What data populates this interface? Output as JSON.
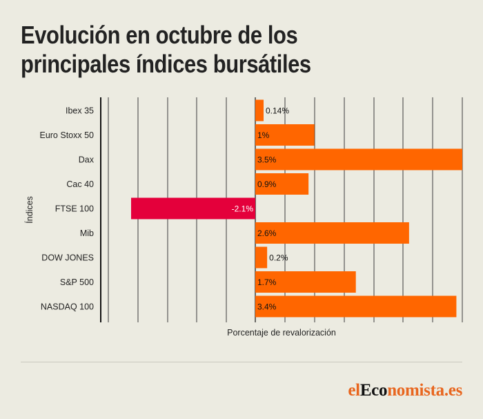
{
  "title": "Evolución en octubre de los principales índices bursátiles",
  "chart_data": {
    "type": "bar",
    "orientation": "horizontal",
    "categories": [
      "Ibex 35",
      "Euro Stoxx 50",
      "Dax",
      "Cac 40",
      "FTSE 100",
      "Mib",
      "DOW JONES",
      "S&P 500",
      "NASDAQ 100"
    ],
    "values": [
      0.14,
      1,
      3.5,
      0.9,
      -2.1,
      2.6,
      0.2,
      1.7,
      3.4
    ],
    "value_labels": [
      "0.14%",
      "1%",
      "3.5%",
      "0.9%",
      "-2.1%",
      "2.6%",
      "0.2%",
      "1.7%",
      "3.4%"
    ],
    "xlabel": "Porcentaje de revalorización",
    "ylabel": "Índices",
    "xlim": [
      -2.6,
      3.5
    ],
    "grid": true,
    "colors": {
      "positive": "#ff6600",
      "negative": "#e4003b"
    }
  },
  "footer": {
    "logo_el": "el",
    "logo_eco": "Eco",
    "logo_rest": "nomista.es"
  }
}
